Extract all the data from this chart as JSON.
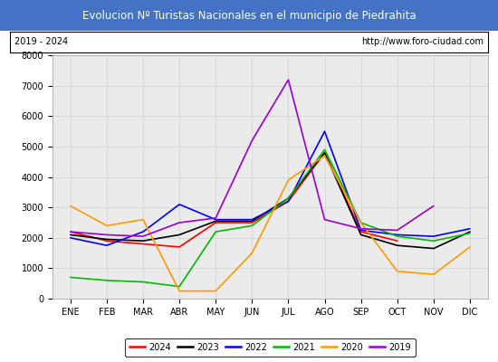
{
  "title": "Evolucion Nº Turistas Nacionales en el municipio de Piedrahita",
  "subtitle_left": "2019 - 2024",
  "subtitle_right": "http://www.foro-ciudad.com",
  "title_bg_color": "#4472c4",
  "title_text_color": "#ffffff",
  "months": [
    "ENE",
    "FEB",
    "MAR",
    "ABR",
    "MAY",
    "JUN",
    "JUL",
    "AGO",
    "SEP",
    "OCT",
    "NOV",
    "DIC"
  ],
  "ylim": [
    0,
    8000
  ],
  "yticks": [
    0,
    1000,
    2000,
    3000,
    4000,
    5000,
    6000,
    7000,
    8000
  ],
  "series": {
    "2024": {
      "color": "#ff0000",
      "data": [
        2200,
        1900,
        1800,
        1700,
        2500,
        2500,
        3200,
        4800,
        2200,
        1900,
        null,
        null
      ]
    },
    "2023": {
      "color": "#000000",
      "data": [
        2100,
        1950,
        1900,
        2100,
        2550,
        2550,
        3300,
        4800,
        2100,
        1750,
        1650,
        2200
      ]
    },
    "2022": {
      "color": "#0000ff",
      "data": [
        2000,
        1750,
        2200,
        3100,
        2600,
        2600,
        3200,
        5500,
        2250,
        2100,
        2050,
        2300
      ]
    },
    "2021": {
      "color": "#00bb00",
      "data": [
        700,
        600,
        550,
        400,
        2200,
        2400,
        3300,
        4900,
        2500,
        2050,
        1900,
        2150
      ]
    },
    "2020": {
      "color": "#ff9900",
      "data": [
        3050,
        2400,
        2600,
        250,
        250,
        1500,
        3900,
        4700,
        2500,
        900,
        800,
        1700
      ]
    },
    "2019": {
      "color": "#9900cc",
      "data": [
        2200,
        2100,
        2050,
        2500,
        2650,
        5200,
        7200,
        2600,
        2300,
        2250,
        3050,
        null
      ]
    }
  },
  "legend_order": [
    "2024",
    "2023",
    "2022",
    "2021",
    "2020",
    "2019"
  ],
  "grid_color": "#d0d0d0",
  "plot_bg_color": "#ebebeb",
  "fig_bg_color": "#ffffff",
  "border_color": "#aaaaaa"
}
